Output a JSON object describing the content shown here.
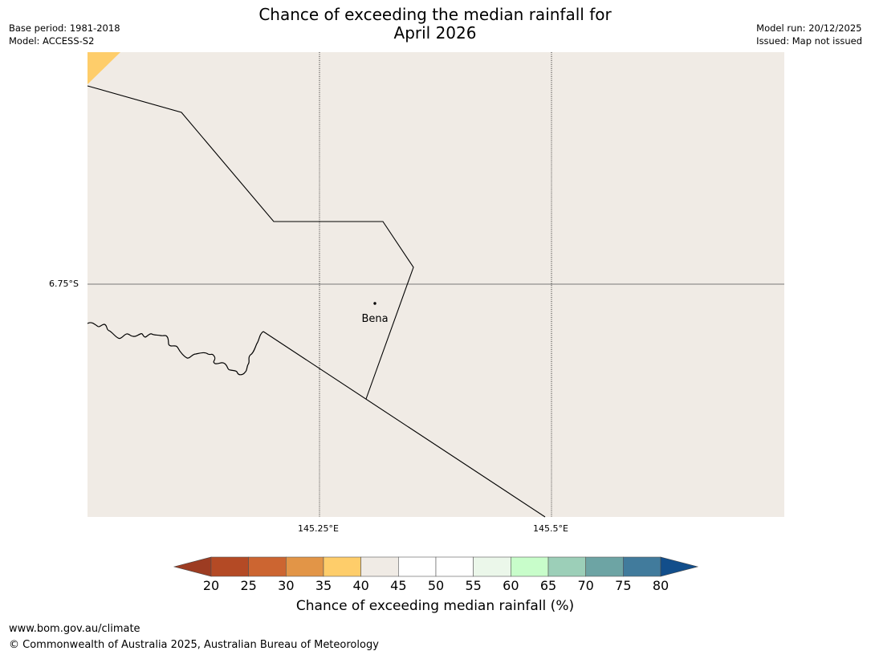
{
  "title_line1": "Chance of exceeding the median rainfall for",
  "title_line2": "April 2026",
  "meta": {
    "base_period": "Base period: 1981-2018",
    "model": "Model: ACCESS-S2",
    "model_run": "Model run: 20/12/2025",
    "issued": "Issued: Map not issued"
  },
  "map": {
    "background_color": "#f0ebe5",
    "lat_label": "6.75°S",
    "lon_labels": [
      "145.25°E",
      "145.5°E"
    ],
    "place_name": "Bena",
    "corner_patch_color": "#fecd6a"
  },
  "colorbar": {
    "ticks": [
      "20",
      "25",
      "30",
      "35",
      "40",
      "45",
      "50",
      "55",
      "60",
      "65",
      "70",
      "75",
      "80"
    ],
    "low_extend_color": "#9d3c22",
    "high_extend_color": "#124e8b",
    "bins": [
      "#b44a25",
      "#cc6531",
      "#e29547",
      "#fecd6a",
      "#f0ebe5",
      "#ffffff",
      "#ffffff",
      "#ebf7ea",
      "#c8fdca",
      "#9ccfb8",
      "#6da4a4",
      "#417b9c"
    ],
    "label": "Chance of exceeding median rainfall (%)"
  },
  "footer": {
    "url": "www.bom.gov.au/climate",
    "copyright": "© Commonwealth of Australia 2025, Australian Bureau of Meteorology"
  }
}
